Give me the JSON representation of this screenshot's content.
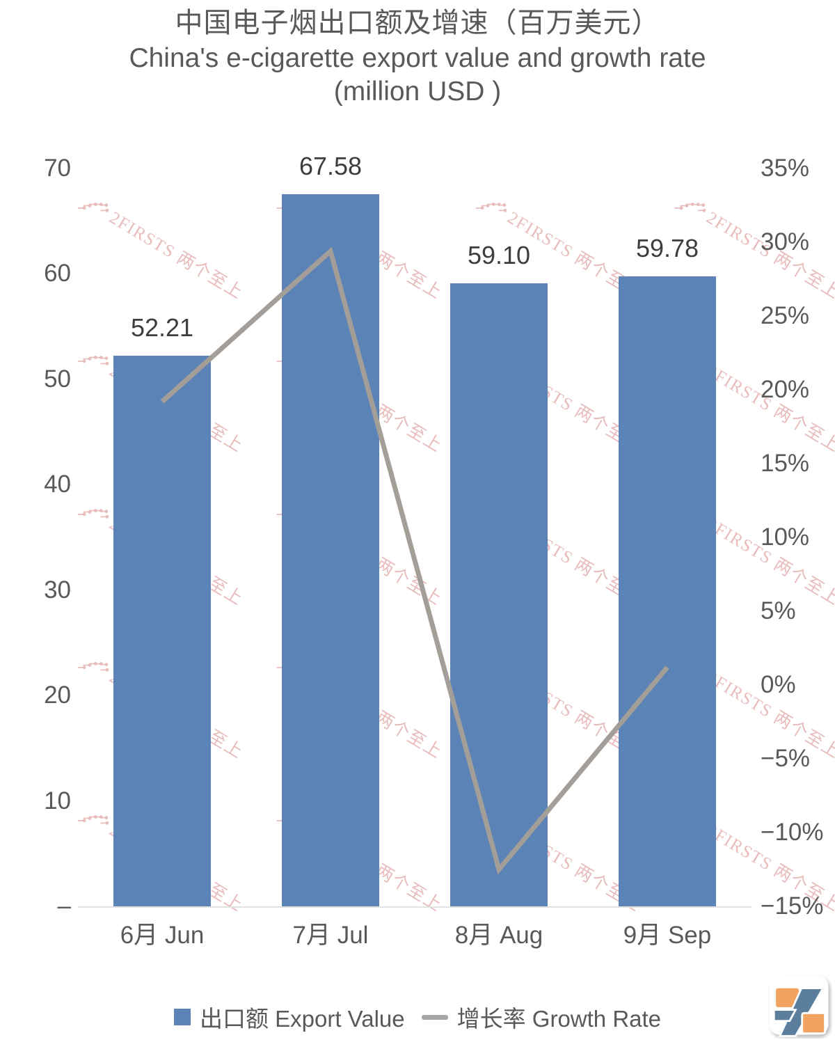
{
  "title": {
    "zh": "中国电子烟出口额及增速（百万美元）",
    "en": "China's e-cigarette export value and growth rate (million USD )"
  },
  "chart_data": {
    "type": "bar",
    "subtype": "bar+line combo, dual axis",
    "categories": [
      "6月 Jun",
      "7月 Jul",
      "8月 Aug",
      "9月 Sep"
    ],
    "series": [
      {
        "name": "出口额 Export Value",
        "type": "bar",
        "axis": "left",
        "values": [
          52.21,
          67.58,
          59.1,
          59.78
        ],
        "labels": [
          "52.21",
          "67.58",
          "59.10",
          "59.78"
        ],
        "color": "#5c83b6"
      },
      {
        "name": "增长率 Growth Rate",
        "type": "line",
        "axis": "right",
        "values": [
          19.2,
          29.4,
          -12.5,
          1.2
        ],
        "color": "#a49e98"
      }
    ],
    "left_axis": {
      "min": 0,
      "max": 70,
      "tick_values": [
        70,
        60,
        50,
        40,
        30,
        20,
        10,
        0
      ],
      "tick_labels": [
        "70",
        "60",
        "50",
        "40",
        "30",
        "20",
        "10",
        "–"
      ]
    },
    "right_axis": {
      "min": -15,
      "max": 35,
      "tick_values": [
        35,
        30,
        25,
        20,
        15,
        10,
        5,
        0,
        -5,
        -10,
        -15
      ],
      "tick_labels": [
        "35%",
        "30%",
        "25%",
        "20%",
        "15%",
        "10%",
        "5%",
        "0%",
        "−5%",
        "−10%",
        "−15%"
      ]
    },
    "grid": "off",
    "legend_position": "bottom",
    "title": "中国电子烟出口额及增速（百万美元） China's e-cigarette export value and growth rate (million USD )"
  },
  "legend": [
    {
      "label": "出口额 Export Value",
      "marker": "square",
      "color": "#5c83b6"
    },
    {
      "label": "增长率 Growth Rate",
      "marker": "dash",
      "color": "#a6a6a6"
    }
  ],
  "watermark": {
    "text": "2FIRSTS 两个至上",
    "color": "#e3aaaa"
  },
  "logo": {
    "name": "2firsts-logo",
    "orange": "#f2a360",
    "blue": "#5b7e9d"
  },
  "colors": {
    "bar": "#5c83b6",
    "line": "#a49e98",
    "axis_text": "#595959",
    "value_text": "#3d3d3d",
    "baseline": "#e2e2e2"
  }
}
